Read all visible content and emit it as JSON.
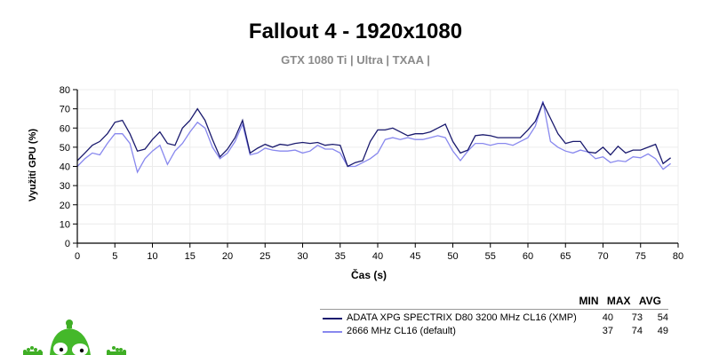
{
  "header": {
    "title": "Fallout 4 - 1920x1080",
    "subtitle": "GTX 1080 Ti | Ultra | TXAA |"
  },
  "legend": {
    "col_min": "MIN",
    "col_max": "MAX",
    "col_avg": "AVG",
    "series": [
      {
        "name": "ADATA XPG SPECTRIX D80 3200 MHz CL16 (XMP)",
        "min": "40",
        "max": "73",
        "avg": "54",
        "color": "#1a1a6e"
      },
      {
        "name": "2666 MHz CL16 (default)",
        "min": "37",
        "max": "74",
        "avg": "49",
        "color": "#8888ee"
      }
    ]
  },
  "chart_data": {
    "type": "line",
    "title": "Fallout 4 - 1920x1080",
    "subtitle": "GTX 1080 Ti | Ultra | TXAA |",
    "xlabel": "Čas (s)",
    "ylabel": "Využití GPU (%)",
    "xlim": [
      0,
      80
    ],
    "ylim": [
      0,
      80
    ],
    "xticks": [
      0,
      5,
      10,
      15,
      20,
      25,
      30,
      35,
      40,
      45,
      50,
      55,
      60,
      65,
      70,
      75,
      80
    ],
    "yticks": [
      0,
      10,
      20,
      30,
      40,
      50,
      60,
      70,
      80
    ],
    "grid": true,
    "legend_position": "bottom-right",
    "x": [
      0,
      1,
      2,
      3,
      4,
      5,
      6,
      7,
      8,
      9,
      10,
      11,
      12,
      13,
      14,
      15,
      16,
      17,
      18,
      19,
      20,
      21,
      22,
      23,
      24,
      25,
      26,
      27,
      28,
      29,
      30,
      31,
      32,
      33,
      34,
      35,
      36,
      37,
      38,
      39,
      40,
      41,
      42,
      43,
      44,
      45,
      46,
      47,
      48,
      49,
      50,
      51,
      52,
      53,
      54,
      55,
      56,
      57,
      58,
      59,
      60,
      61,
      62,
      63,
      64,
      65,
      66,
      67,
      68,
      69,
      70,
      71,
      72,
      73,
      74,
      75,
      76,
      77,
      78,
      79
    ],
    "series": [
      {
        "name": "ADATA XPG SPECTRIX D80 3200 MHz CL16 (XMP)",
        "color": "#1a1a6e",
        "values": [
          43,
          47,
          51,
          53,
          57,
          63,
          64,
          57,
          48,
          49,
          54,
          58,
          52,
          51,
          60,
          64,
          70,
          64,
          54,
          45,
          49,
          55,
          64,
          47,
          49.5,
          51.5,
          50,
          51.5,
          51,
          52,
          52.5,
          52,
          52.5,
          51,
          51.5,
          51,
          40,
          42,
          43,
          53,
          59,
          59,
          60,
          58,
          56,
          57,
          57,
          58,
          60,
          62,
          53,
          47,
          48.5,
          56,
          56.5,
          56,
          55,
          55,
          55,
          55,
          59,
          63.5,
          73,
          65,
          57,
          52,
          53,
          53,
          47.5,
          47,
          50,
          46,
          50.5,
          47,
          48.5,
          48.5,
          50,
          51.5,
          41.5,
          44.5
        ]
      },
      {
        "name": "2666 MHz CL16 (default)",
        "color": "#8888ee",
        "values": [
          40,
          44,
          47,
          46,
          52,
          57,
          57,
          52,
          37,
          44,
          48,
          51,
          41,
          48,
          52,
          58,
          63,
          60,
          50,
          44,
          47,
          53,
          62,
          46,
          47,
          49.5,
          48.5,
          48,
          48,
          48.5,
          47,
          48,
          51,
          49,
          49,
          47,
          40,
          40,
          42,
          44,
          47,
          54,
          55,
          54,
          55,
          54,
          54,
          55,
          56,
          55,
          48,
          43,
          48,
          52,
          52,
          51,
          52,
          52,
          51,
          53,
          55,
          61,
          74,
          53,
          50,
          48,
          47,
          48.5,
          47.5,
          44,
          45,
          42,
          43,
          42.5,
          45,
          44.5,
          46.5,
          44,
          38.5,
          41.5
        ]
      }
    ]
  }
}
